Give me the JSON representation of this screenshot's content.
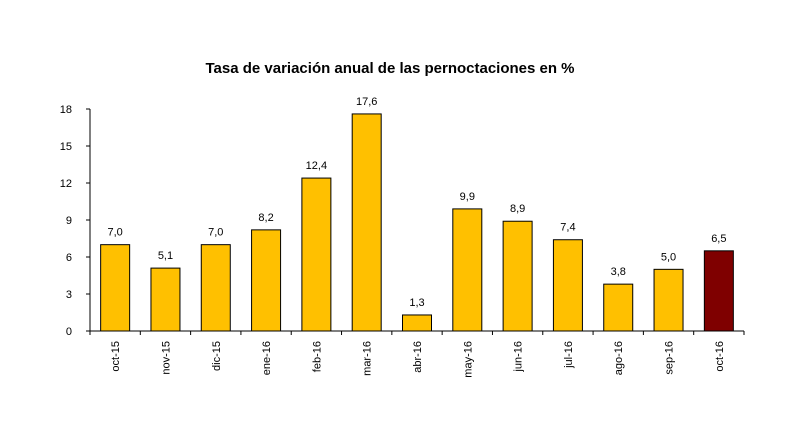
{
  "chart_data": {
    "type": "bar",
    "title": "Tasa de variación anual de las pernoctaciones en %",
    "xlabel": "",
    "ylabel": "",
    "categories": [
      "oct-15",
      "nov-15",
      "dic-15",
      "ene-16",
      "feb-16",
      "mar-16",
      "abr-16",
      "may-16",
      "jun-16",
      "jul-16",
      "ago-16",
      "sep-16",
      "oct-16"
    ],
    "values": [
      7.0,
      5.1,
      7.0,
      8.2,
      12.4,
      17.6,
      1.3,
      9.9,
      8.9,
      7.4,
      3.8,
      5.0,
      6.5
    ],
    "value_labels": [
      "7,0",
      "5,1",
      "7,0",
      "8,2",
      "12,4",
      "17,6",
      "1,3",
      "9,9",
      "8,9",
      "7,4",
      "3,8",
      "5,0",
      "6,5"
    ],
    "ylim": [
      0,
      18
    ],
    "yticks": [
      0,
      3,
      6,
      9,
      12,
      15,
      18
    ],
    "grid": false,
    "legend": "none",
    "colors": {
      "bar": "#FFC000",
      "highlight_bar": "#7F0000",
      "bar_stroke": "#000000"
    },
    "highlight_index": 12
  }
}
